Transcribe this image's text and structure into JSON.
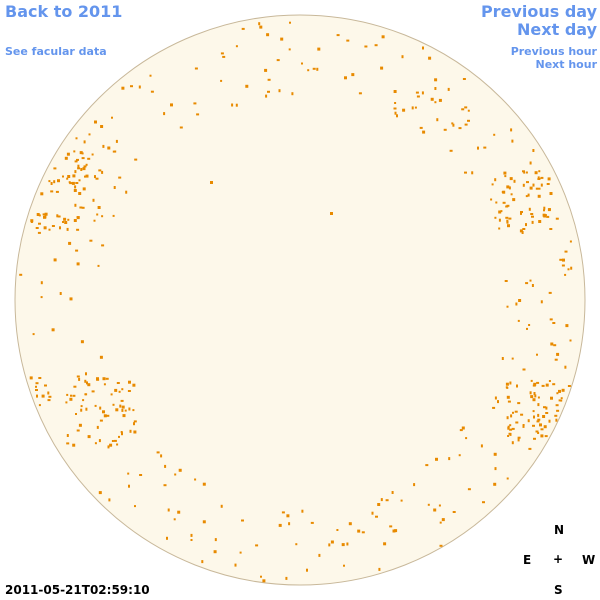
{
  "nav_left": {
    "back": "Back to 2011",
    "facular": "See facular data"
  },
  "nav_right": {
    "previous_day": "Previous day",
    "next_day": "Next day",
    "previous_hour": "Previous hour",
    "next_hour": "Next hour"
  },
  "compass": {
    "north": "N",
    "east": "E",
    "center": "+",
    "west": "W",
    "south": "S"
  },
  "timestamp": "2011-05-21T02:59:10"
}
